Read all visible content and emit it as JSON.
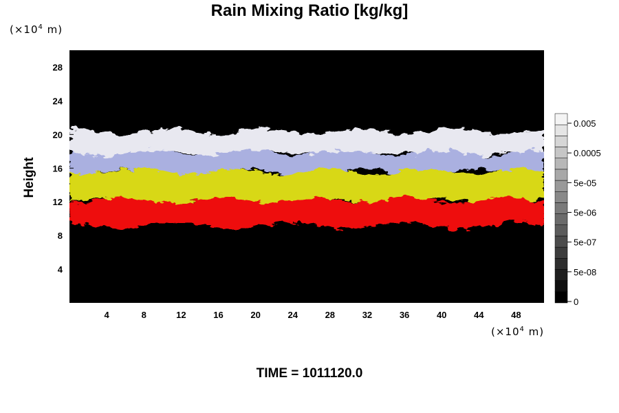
{
  "chart_data": {
    "type": "heatmap",
    "title": "Rain Mixing Ratio [kg/kg]",
    "ylabel": "Height",
    "y_unit": {
      "prefix": "(×10",
      "exp": "4",
      "suffix": " m)"
    },
    "x_unit": {
      "prefix": "(×10",
      "exp": "4",
      "suffix": " m)"
    },
    "xlim": [
      0,
      51
    ],
    "ylim": [
      0,
      30
    ],
    "x_ticks": [
      4,
      8,
      12,
      16,
      20,
      24,
      28,
      32,
      36,
      40,
      44,
      48
    ],
    "y_ticks": [
      4,
      8,
      12,
      16,
      20,
      24,
      28
    ],
    "layers": [
      {
        "color": "#e8e8f0",
        "top": 20.4,
        "bottom": 17.5
      },
      {
        "color": "#aab0e0",
        "top": 17.8,
        "bottom": 15.5
      },
      {
        "color": "#d8d818",
        "top": 15.6,
        "bottom": 12.0
      },
      {
        "color": "#ee1010",
        "top": 12.2,
        "bottom": 9.2
      }
    ],
    "colorbar": {
      "labels": [
        "0.005",
        "0.0005",
        "5e-05",
        "5e-06",
        "5e-07",
        "5e-08",
        "0"
      ],
      "levels": 17,
      "color_low": "#000000",
      "color_high": "#f4f4f4"
    },
    "time_text": "TIME = 1011120.0"
  }
}
